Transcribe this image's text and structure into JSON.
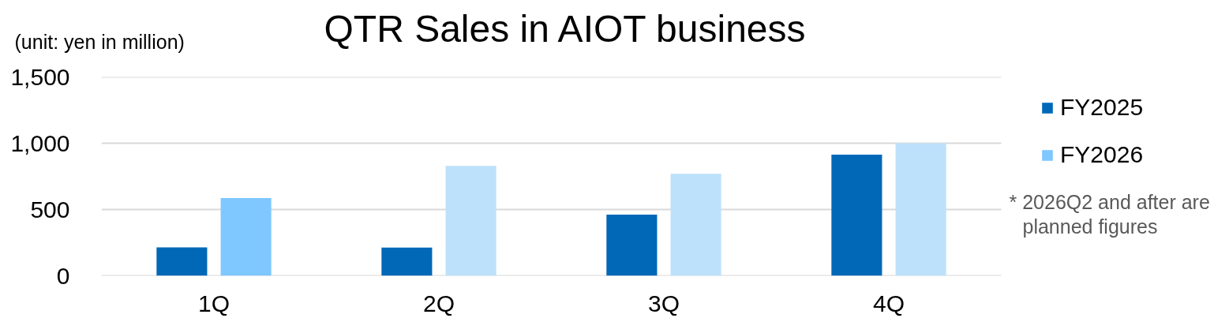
{
  "chart_data": {
    "type": "bar",
    "title": "QTR Sales in AIOT business",
    "ylabel": "(unit: yen in million)",
    "categories": [
      "1Q",
      "2Q",
      "3Q",
      "4Q"
    ],
    "series": [
      {
        "name": "FY2025",
        "color": "#0068b7",
        "values": [
          215,
          213,
          462,
          913
        ]
      },
      {
        "name": "FY2026",
        "colors": [
          "#7fc7ff",
          "#bde1fb",
          "#bde1fb",
          "#bde1fb"
        ],
        "values": [
          587,
          829,
          770,
          1000
        ]
      }
    ],
    "ylim": [
      0,
      1500
    ],
    "yticks": [
      0,
      500,
      {
        "value": 1000,
        "label": "1,000"
      },
      {
        "value": 1500,
        "label": "1,500"
      }
    ],
    "grid": "y",
    "legend": "right",
    "annotations": [
      "* 2026Q2 and after are planned figures"
    ]
  }
}
